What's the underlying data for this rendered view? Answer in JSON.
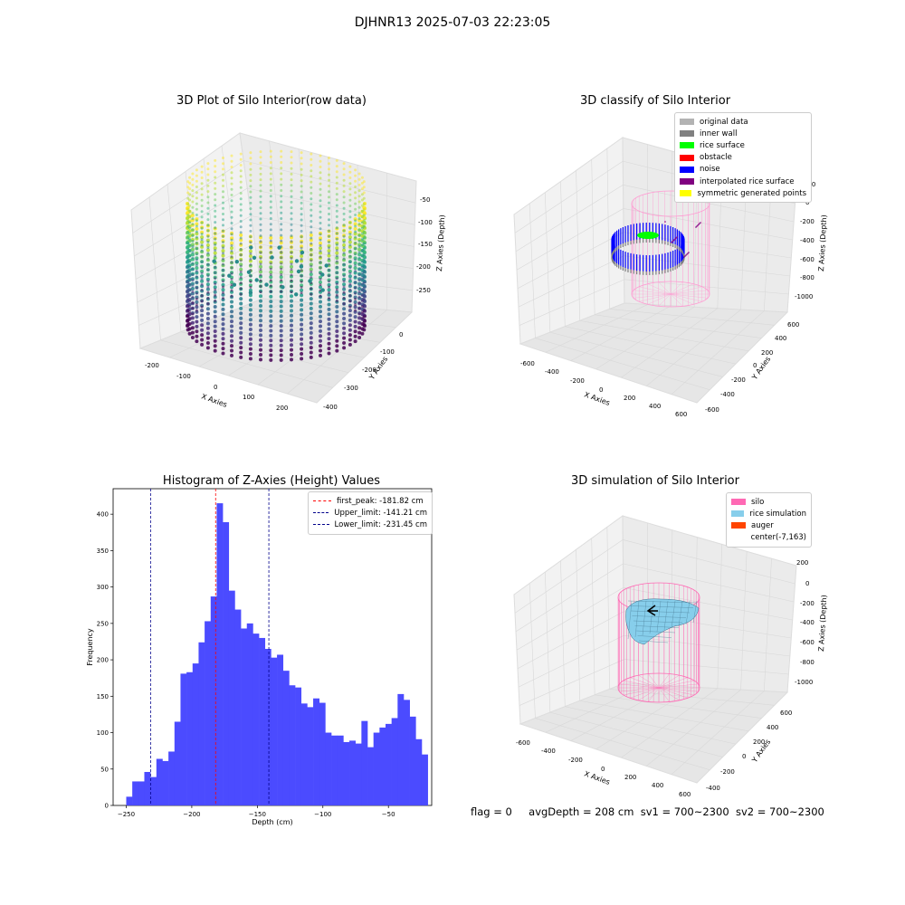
{
  "suptitle": "DJHNR13 2025-07-03 22:23:05",
  "footer": {
    "flag": "flag = 0",
    "avg_depth": "avgDepth = 208 cm",
    "sv1": "sv1 = 700~2300",
    "sv2": "sv2 = 700~2300"
  },
  "chart_data": [
    {
      "type": "scatter",
      "title": "3D Plot of Silo Interior(row data)",
      "xlabel": "X Axies",
      "ylabel": "Y Axies",
      "zlabel": "Z Axies (Depth)",
      "x_ticks": [
        "-200",
        "-100",
        "0",
        "100",
        "200"
      ],
      "y_ticks": [
        "-400",
        "-300",
        "-200",
        "-100",
        "0"
      ],
      "z_ticks": [
        "-50",
        "-100",
        "-150",
        "-200",
        "-250"
      ],
      "colormap": "viridis"
    },
    {
      "type": "scatter",
      "title": "3D classify of Silo Interior",
      "xlabel": "X Axies",
      "ylabel": "Y Axies",
      "zlabel": "Z Axies (Depth)",
      "x_ticks": [
        "-600",
        "-400",
        "-200",
        "0",
        "200",
        "400",
        "600"
      ],
      "y_ticks": [
        "-600",
        "-400",
        "-200",
        "0",
        "200",
        "400",
        "600"
      ],
      "z_ticks": [
        "200",
        "0",
        "-200",
        "-400",
        "-600",
        "-800",
        "-1000"
      ],
      "legend": [
        {
          "label": "original data",
          "color": "#b3b3b3"
        },
        {
          "label": "inner wall",
          "color": "#808080"
        },
        {
          "label": "rice surface",
          "color": "#00ff00"
        },
        {
          "label": "obstacle",
          "color": "#ff0000"
        },
        {
          "label": "noise",
          "color": "#0000ff"
        },
        {
          "label": "interpolated rice surface",
          "color": "#800080"
        },
        {
          "label": "symmetric generated points",
          "color": "#ffff00"
        }
      ]
    },
    {
      "type": "bar",
      "title": "Histogram of Z-Axies (Height) Values",
      "xlabel": "Depth (cm)",
      "ylabel": "Frequency",
      "xlim": [
        -260,
        -17
      ],
      "ylim": [
        0,
        435
      ],
      "x_ticks": [
        -250,
        -200,
        -150,
        -100,
        -50
      ],
      "y_ticks": [
        0,
        50,
        100,
        150,
        200,
        250,
        300,
        350,
        400
      ],
      "bar_color": "#4b4bff",
      "bins": {
        "start": -250,
        "width": 4.6,
        "values": [
          12,
          33,
          33,
          46,
          39,
          64,
          61,
          74,
          115,
          181,
          183,
          195,
          224,
          253,
          287,
          415,
          389,
          295,
          269,
          243,
          250,
          236,
          230,
          215,
          203,
          207,
          185,
          165,
          162,
          140,
          135,
          147,
          141,
          100,
          96,
          96,
          87,
          89,
          85,
          116,
          80,
          100,
          107,
          112,
          120,
          153,
          145,
          122,
          91,
          70
        ]
      },
      "lines": [
        {
          "label": "first_peak: -181.82 cm",
          "x": -181.82,
          "color": "#ff0000"
        },
        {
          "label": "Upper_limit: -141.21 cm",
          "x": -141.21,
          "color": "#00008b"
        },
        {
          "label": "Lower_limit: -231.45 cm",
          "x": -231.45,
          "color": "#00008b"
        }
      ]
    },
    {
      "type": "scatter",
      "title": "3D simulation of Silo Interior",
      "xlabel": "X Axies",
      "ylabel": "Y Axies",
      "zlabel": "Z Axies (Depth)",
      "x_ticks": [
        "-600",
        "-400",
        "-200",
        "0",
        "200",
        "400",
        "600"
      ],
      "y_ticks": [
        "-400",
        "-200",
        "0",
        "200",
        "400",
        "600"
      ],
      "z_ticks": [
        "200",
        "0",
        "-200",
        "-400",
        "-600",
        "-800",
        "-1000"
      ],
      "legend": [
        {
          "label": "silo",
          "color": "#ff69b4"
        },
        {
          "label": "rice simulation",
          "color": "#87ceeb"
        },
        {
          "label": "auger",
          "color": "#ff4500"
        },
        {
          "label": "center(-7,163)",
          "color": "#ffffff"
        }
      ]
    }
  ]
}
